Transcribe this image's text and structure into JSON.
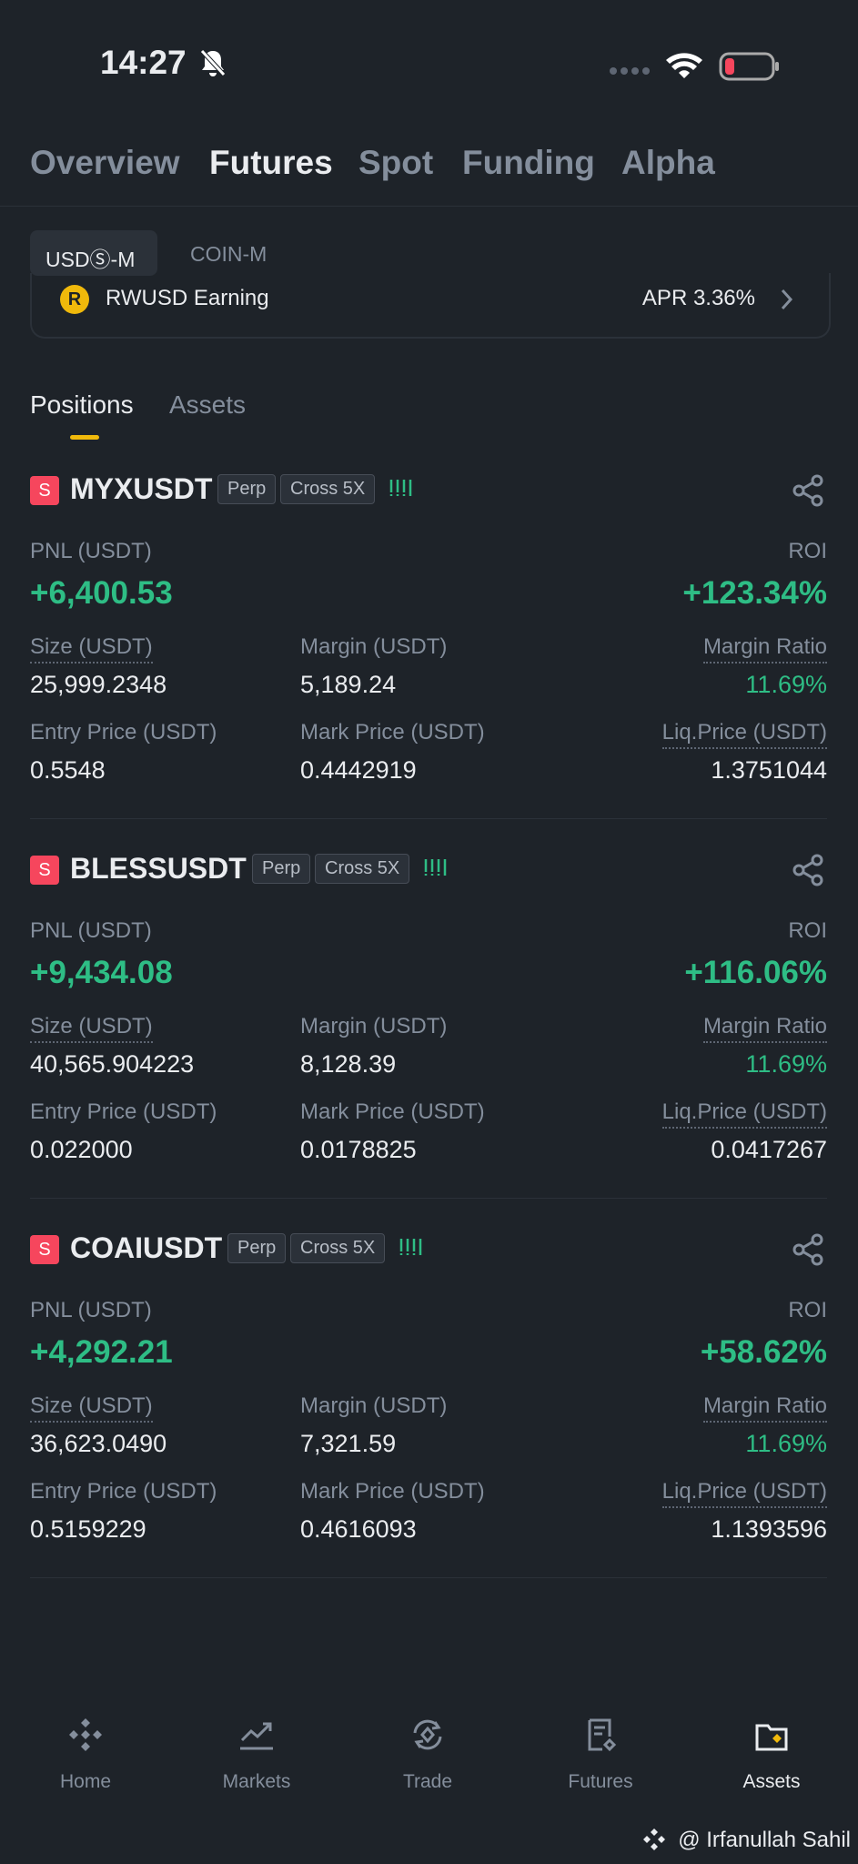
{
  "status_bar": {
    "time": "14:27"
  },
  "tabs": [
    "Overview",
    "Futures",
    "Spot",
    "Funding",
    "Alpha"
  ],
  "sub_tabs": [
    "USDⓈ-M",
    "COIN-M"
  ],
  "banner": {
    "title": "RWUSD Earning",
    "apr": "APR 3.36%"
  },
  "section_tabs": [
    "Positions",
    "Assets"
  ],
  "positions": [
    {
      "side": "S",
      "symbol": "MYXUSDT",
      "tags": [
        "Perp",
        "Cross 5X"
      ],
      "pnl_label": "PNL (USDT)",
      "pnl": "+6,400.53",
      "roi_label": "ROI",
      "roi": "+123.34%",
      "fields": [
        {
          "label": "Size (USDT)",
          "value": "25,999.2348"
        },
        {
          "label": "Margin (USDT)",
          "value": "5,189.24"
        },
        {
          "label": "Margin Ratio",
          "value": "11.69%"
        },
        {
          "label": "Entry Price (USDT)",
          "value": "0.5548"
        },
        {
          "label": "Mark Price (USDT)",
          "value": "0.4442919"
        },
        {
          "label": "Liq.Price (USDT)",
          "value": "1.3751044"
        }
      ]
    },
    {
      "side": "S",
      "symbol": "BLESSUSDT",
      "tags": [
        "Perp",
        "Cross 5X"
      ],
      "pnl_label": "PNL (USDT)",
      "pnl": "+9,434.08",
      "roi_label": "ROI",
      "roi": "+116.06%",
      "fields": [
        {
          "label": "Size (USDT)",
          "value": "40,565.904223"
        },
        {
          "label": "Margin (USDT)",
          "value": "8,128.39"
        },
        {
          "label": "Margin Ratio",
          "value": "11.69%"
        },
        {
          "label": "Entry Price (USDT)",
          "value": "0.022000"
        },
        {
          "label": "Mark Price (USDT)",
          "value": "0.0178825"
        },
        {
          "label": "Liq.Price (USDT)",
          "value": "0.0417267"
        }
      ]
    },
    {
      "side": "S",
      "symbol": "COAIUSDT",
      "tags": [
        "Perp",
        "Cross 5X"
      ],
      "pnl_label": "PNL (USDT)",
      "pnl": "+4,292.21",
      "roi_label": "ROI",
      "roi": "+58.62%",
      "fields": [
        {
          "label": "Size (USDT)",
          "value": "36,623.0490"
        },
        {
          "label": "Margin (USDT)",
          "value": "7,321.59"
        },
        {
          "label": "Margin Ratio",
          "value": "11.69%"
        },
        {
          "label": "Entry Price (USDT)",
          "value": "0.5159229"
        },
        {
          "label": "Mark Price (USDT)",
          "value": "0.4616093"
        },
        {
          "label": "Liq.Price (USDT)",
          "value": "1.1393596"
        }
      ]
    }
  ],
  "nav": [
    "Home",
    "Markets",
    "Trade",
    "Futures",
    "Assets"
  ],
  "watermark": "@ Irfanullah Sahil"
}
